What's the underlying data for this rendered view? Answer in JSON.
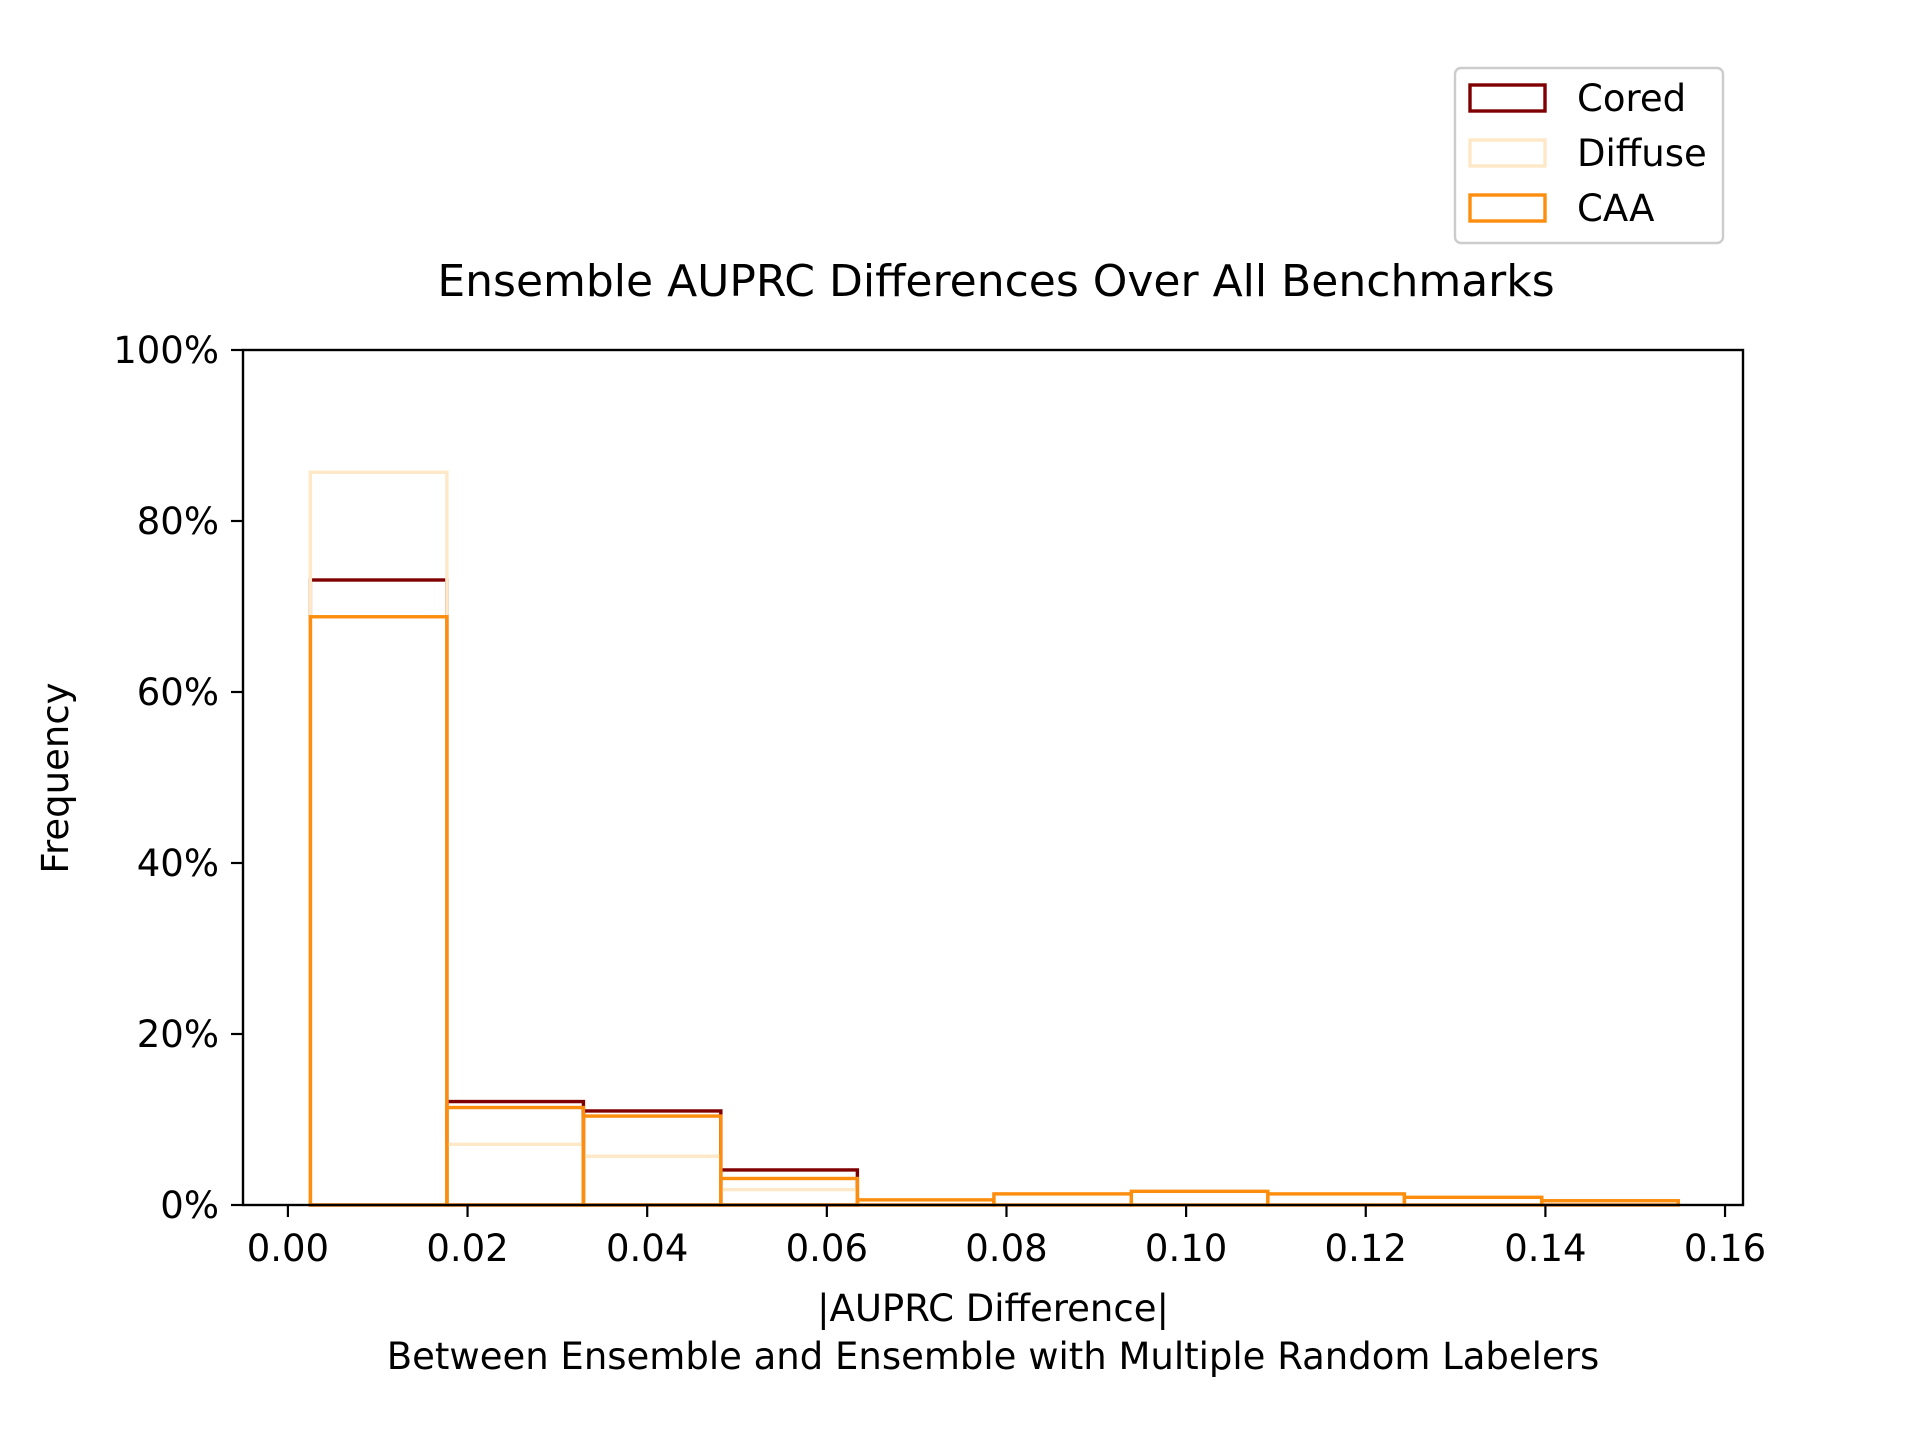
{
  "chart_data": {
    "type": "histogram",
    "title": "Ensemble AUPRC Differences Over All Benchmarks",
    "xlabel": "|AUPRC Difference|",
    "xlabel_line2": "Between Ensemble and Ensemble with Multiple Random Labelers",
    "ylabel": "Frequency",
    "xlim": [
      -0.005,
      0.162
    ],
    "ylim": [
      0,
      100
    ],
    "x_ticks": [
      "0.00",
      "0.02",
      "0.04",
      "0.06",
      "0.08",
      "0.10",
      "0.12",
      "0.14",
      "0.16"
    ],
    "y_ticks": [
      "0%",
      "20%",
      "40%",
      "60%",
      "80%",
      "100%"
    ],
    "grid": false,
    "legend_position": "top-right, above plot",
    "bin_edges": [
      0.0025,
      0.0177,
      0.0329,
      0.0482,
      0.0634,
      0.0786,
      0.0939,
      0.1091,
      0.1243,
      0.1396,
      0.1548
    ],
    "series": [
      {
        "name": "Cored",
        "color": "#7f0000",
        "values": [
          73.1,
          12.1,
          11.0,
          4.1,
          0,
          0,
          0,
          0,
          0,
          0
        ]
      },
      {
        "name": "Diffuse",
        "color": "#fee8c8",
        "values": [
          85.7,
          7.1,
          5.7,
          1.8,
          0,
          0,
          0,
          0,
          0,
          0
        ]
      },
      {
        "name": "CAA",
        "color": "#fd8d0d",
        "values": [
          68.8,
          11.4,
          10.4,
          3.1,
          0.6,
          1.3,
          1.6,
          1.3,
          0.9,
          0.5
        ]
      }
    ]
  }
}
